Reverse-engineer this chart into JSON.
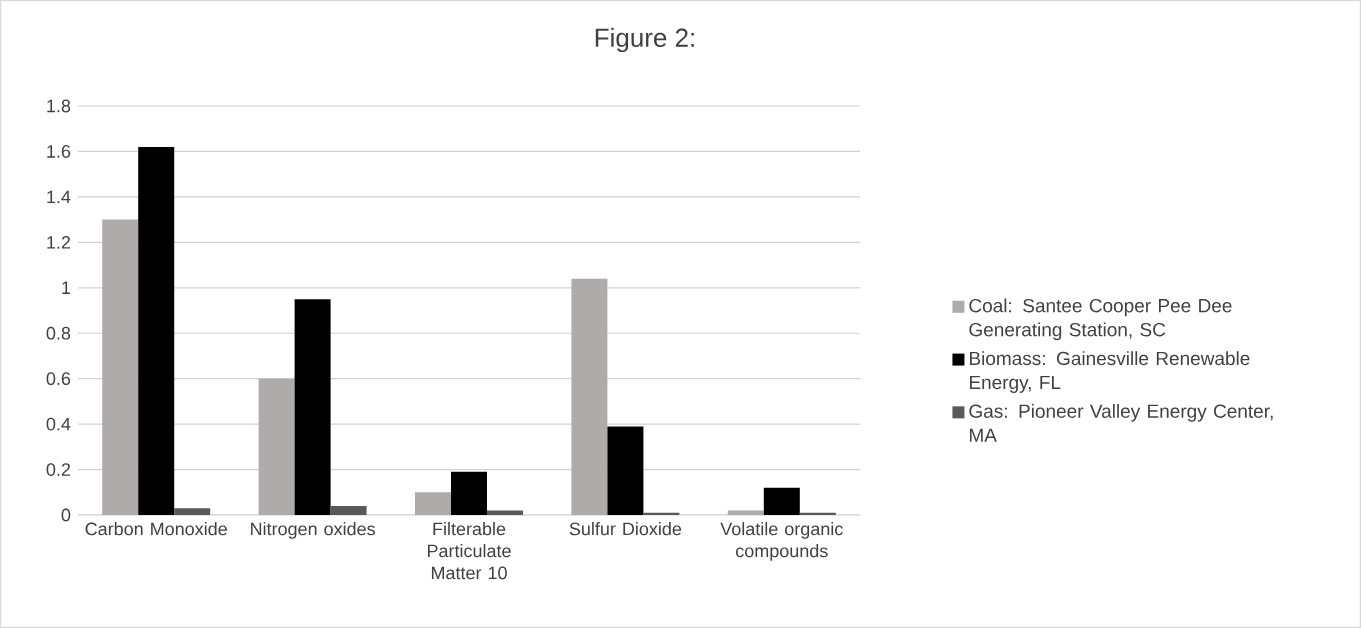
{
  "chart_data": {
    "type": "bar",
    "title": "Figure 2:",
    "categories": [
      "Carbon Monoxide",
      "Nitrogen oxides",
      "Filterable Particulate Matter 10",
      "Sulfur Dioxide",
      "Volatile organic compounds"
    ],
    "series": [
      {
        "name": "Coal: Santee Cooper Pee Dee Generating Station, SC",
        "color": "#afabab",
        "values": [
          1.3,
          0.6,
          0.1,
          1.04,
          0.02
        ]
      },
      {
        "name": "Biomass: Gainesville Renewable Energy, FL",
        "color": "#000000",
        "values": [
          1.62,
          0.95,
          0.19,
          0.39,
          0.12
        ]
      },
      {
        "name": "Gas: Pioneer Valley Energy Center, MA",
        "color": "#595959",
        "values": [
          0.03,
          0.04,
          0.02,
          0.01,
          0.01
        ]
      }
    ],
    "ylim": [
      0,
      1.8
    ],
    "yticks": [
      0,
      0.2,
      0.4,
      0.6,
      0.8,
      1,
      1.2,
      1.4,
      1.6,
      1.8
    ],
    "grid": "y",
    "legend": "right"
  }
}
